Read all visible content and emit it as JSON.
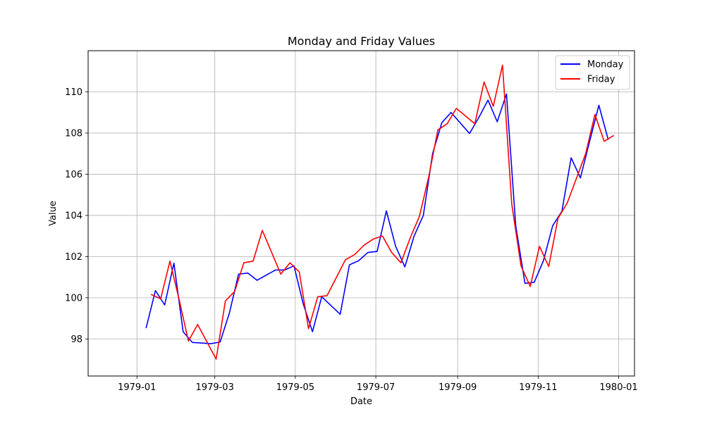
{
  "chart_data": {
    "type": "line",
    "title": "Monday and Friday Values",
    "xlabel": "Date",
    "ylabel": "Value",
    "xlim": [
      "1979-01-01",
      "1980-01-01"
    ],
    "ylim": [
      96.2,
      112.0
    ],
    "x_ticks": [
      "1979-01",
      "1979-03",
      "1979-05",
      "1979-07",
      "1979-09",
      "1979-11",
      "1980-01"
    ],
    "y_ticks": [
      98,
      100,
      102,
      104,
      106,
      108,
      110
    ],
    "grid": true,
    "legend_position": "upper right",
    "series": [
      {
        "name": "Monday",
        "color": "#0000ff",
        "points": [
          [
            "1979-01-08",
            98.55
          ],
          [
            "1979-01-15",
            100.35
          ],
          [
            "1979-01-22",
            99.65
          ],
          [
            "1979-01-29",
            101.68
          ],
          [
            "1979-02-05",
            98.35
          ],
          [
            "1979-02-12",
            97.83
          ],
          [
            "1979-02-26",
            97.77
          ],
          [
            "1979-03-05",
            97.85
          ],
          [
            "1979-03-12",
            99.25
          ],
          [
            "1979-03-19",
            101.15
          ],
          [
            "1979-03-26",
            101.2
          ],
          [
            "1979-04-02",
            100.85
          ],
          [
            "1979-04-16",
            101.35
          ],
          [
            "1979-04-23",
            101.35
          ],
          [
            "1979-04-30",
            101.55
          ],
          [
            "1979-05-07",
            99.7
          ],
          [
            "1979-05-14",
            98.35
          ],
          [
            "1979-05-21",
            100.05
          ],
          [
            "1979-06-04",
            99.2
          ],
          [
            "1979-06-11",
            101.6
          ],
          [
            "1979-06-18",
            101.8
          ],
          [
            "1979-06-25",
            102.2
          ],
          [
            "1979-07-02",
            102.25
          ],
          [
            "1979-07-09",
            104.22
          ],
          [
            "1979-07-16",
            102.5
          ],
          [
            "1979-07-23",
            101.5
          ],
          [
            "1979-07-30",
            103.0
          ],
          [
            "1979-08-06",
            104.0
          ],
          [
            "1979-08-13",
            107.0
          ],
          [
            "1979-08-20",
            108.5
          ],
          [
            "1979-08-27",
            109.0
          ],
          [
            "1979-09-10",
            107.98
          ],
          [
            "1979-09-17",
            108.75
          ],
          [
            "1979-09-24",
            109.6
          ],
          [
            "1979-10-01",
            108.55
          ],
          [
            "1979-10-08",
            109.9
          ],
          [
            "1979-10-15",
            103.5
          ],
          [
            "1979-10-22",
            100.7
          ],
          [
            "1979-10-29",
            100.75
          ],
          [
            "1979-11-05",
            101.8
          ],
          [
            "1979-11-12",
            103.5
          ],
          [
            "1979-11-19",
            104.2
          ],
          [
            "1979-11-26",
            106.8
          ],
          [
            "1979-12-03",
            105.82
          ],
          [
            "1979-12-10",
            107.6
          ],
          [
            "1979-12-17",
            109.35
          ],
          [
            "1979-12-24",
            107.7
          ]
        ]
      },
      {
        "name": "Friday",
        "color": "#ff0000",
        "points": [
          [
            "1979-01-12",
            100.15
          ],
          [
            "1979-01-19",
            99.95
          ],
          [
            "1979-01-26",
            101.78
          ],
          [
            "1979-02-02",
            99.9
          ],
          [
            "1979-02-09",
            97.9
          ],
          [
            "1979-02-16",
            98.7
          ],
          [
            "1979-03-02",
            97.02
          ],
          [
            "1979-03-09",
            99.85
          ],
          [
            "1979-03-16",
            100.3
          ],
          [
            "1979-03-23",
            101.7
          ],
          [
            "1979-03-30",
            101.78
          ],
          [
            "1979-04-06",
            103.27
          ],
          [
            "1979-04-20",
            101.15
          ],
          [
            "1979-04-27",
            101.7
          ],
          [
            "1979-05-04",
            101.25
          ],
          [
            "1979-05-11",
            98.5
          ],
          [
            "1979-05-18",
            100.05
          ],
          [
            "1979-05-25",
            100.1
          ],
          [
            "1979-06-08",
            101.85
          ],
          [
            "1979-06-15",
            102.1
          ],
          [
            "1979-06-22",
            102.55
          ],
          [
            "1979-06-29",
            102.85
          ],
          [
            "1979-07-06",
            103.0
          ],
          [
            "1979-07-13",
            102.2
          ],
          [
            "1979-07-20",
            101.7
          ],
          [
            "1979-07-27",
            102.9
          ],
          [
            "1979-08-03",
            103.95
          ],
          [
            "1979-08-10",
            105.85
          ],
          [
            "1979-08-17",
            108.15
          ],
          [
            "1979-08-24",
            108.45
          ],
          [
            "1979-08-31",
            109.2
          ],
          [
            "1979-09-14",
            108.45
          ],
          [
            "1979-09-21",
            110.48
          ],
          [
            "1979-09-28",
            109.3
          ],
          [
            "1979-10-05",
            111.3
          ],
          [
            "1979-10-12",
            104.55
          ],
          [
            "1979-10-19",
            101.55
          ],
          [
            "1979-10-26",
            100.55
          ],
          [
            "1979-11-02",
            102.5
          ],
          [
            "1979-11-09",
            101.52
          ],
          [
            "1979-11-16",
            103.85
          ],
          [
            "1979-11-23",
            104.6
          ],
          [
            "1979-12-07",
            107.0
          ],
          [
            "1979-12-14",
            108.9
          ],
          [
            "1979-12-21",
            107.6
          ],
          [
            "1979-12-28",
            107.87
          ]
        ]
      }
    ]
  }
}
